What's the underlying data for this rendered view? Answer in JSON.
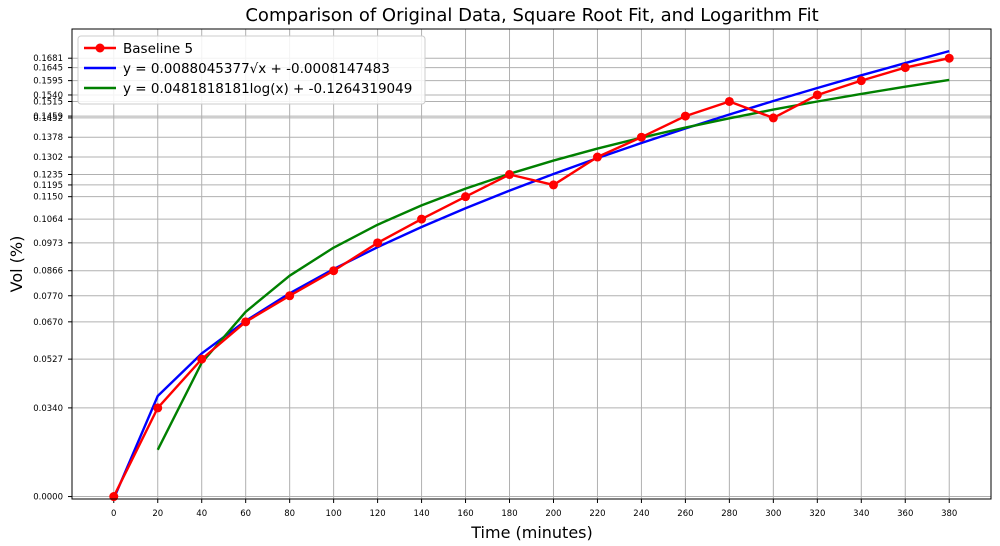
{
  "chart_data": {
    "type": "line",
    "title": "Comparison of Original Data, Square Root Fit, and Logarithm Fit",
    "xlabel": "Time (minutes)",
    "ylabel": "Vol (%)",
    "xlim": [
      -19,
      399
    ],
    "ylim": [
      -0.00094,
      0.1793
    ],
    "grid": true,
    "legend_position": "top-left",
    "x_ticks": [
      "0",
      "20",
      "40",
      "60",
      "80",
      "100",
      "120",
      "140",
      "160",
      "180",
      "200",
      "220",
      "240",
      "260",
      "280",
      "300",
      "320",
      "340",
      "360",
      "380"
    ],
    "y_ticks": [
      "0.0000",
      "0.0340",
      "0.0527",
      "0.0670",
      "0.0770",
      "0.0866",
      "0.0973",
      "0.1064",
      "0.1150",
      "0.1195",
      "0.1235",
      "0.1302",
      "0.1378",
      "0.1452",
      "0.1459",
      "0.1515",
      "0.1540",
      "0.1595",
      "0.1645",
      "0.1681"
    ],
    "series": [
      {
        "name": "Baseline 5",
        "color": "#ff0000",
        "marker": "circle",
        "x": [
          0,
          20,
          40,
          60,
          80,
          100,
          120,
          140,
          160,
          180,
          200,
          220,
          240,
          260,
          280,
          300,
          320,
          340,
          360,
          380
        ],
        "y": [
          0.0,
          0.034,
          0.0527,
          0.067,
          0.077,
          0.0866,
          0.0973,
          0.1064,
          0.115,
          0.1235,
          0.1195,
          0.1302,
          0.1378,
          0.1459,
          0.1515,
          0.1452,
          0.154,
          0.1595,
          0.1645,
          0.1681
        ]
      },
      {
        "name": "y = 0.0088045377√x + -0.0008147483",
        "color": "#0000ff",
        "fit": "sqrt",
        "a": 0.0088045377,
        "b": -0.0008147483,
        "x": [
          0,
          20,
          40,
          60,
          80,
          100,
          120,
          140,
          160,
          180,
          200,
          220,
          240,
          260,
          280,
          300,
          320,
          340,
          360,
          380
        ]
      },
      {
        "name": "y = 0.0481818181log(x) + -0.1264319049",
        "color": "#008000",
        "fit": "log",
        "a": 0.0481818181,
        "b": -0.1264319049,
        "x": [
          20,
          40,
          60,
          80,
          100,
          120,
          140,
          160,
          180,
          200,
          220,
          240,
          260,
          280,
          300,
          320,
          340,
          360,
          380
        ]
      }
    ]
  }
}
